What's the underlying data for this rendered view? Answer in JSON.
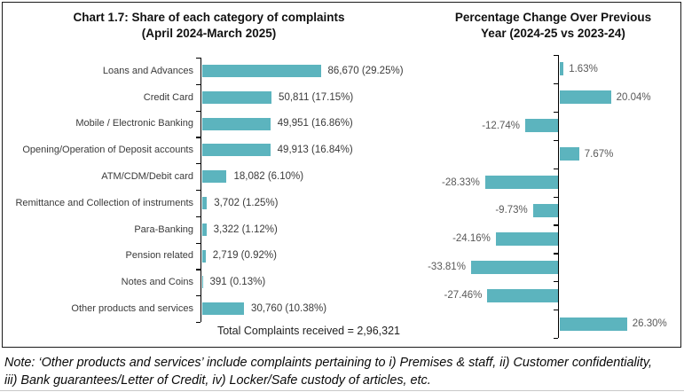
{
  "panels": {
    "left": {
      "title_line1": "Chart 1.7: Share of each category of complaints",
      "title_line2": "(April 2024-March 2025)",
      "total_label": "Total Complaints received = 2,96,321"
    },
    "right": {
      "title_line1": "Percentage Change Over Previous",
      "title_line2": "Year (2024-25 vs 2023-24)"
    }
  },
  "note": {
    "lines": [
      "Note: ‘Other products and services’ include complaints pertaining to i) Premises & staff, ii) Customer confidentiality,",
      "iii) Bank guarantees/Letter of Credit, iv) Locker/Safe custody of articles, etc."
    ]
  },
  "colors": {
    "bar": "#5cb4be",
    "axis": "#000000",
    "label": "#3a3a3a",
    "pct_label": "#595959"
  },
  "chart_data": [
    {
      "type": "bar",
      "orientation": "horizontal",
      "title": "Chart 1.7: Share of each category of complaints (April 2024-March 2025)",
      "categories": [
        "Loans and Advances",
        "Credit Card",
        "Mobile / Electronic Banking",
        "Opening/Operation of Deposit accounts",
        "ATM/CDM/Debit card",
        "Remittance and Collection of instruments",
        "Para-Banking",
        "Pension related",
        "Notes and Coins",
        "Other products and services"
      ],
      "values": [
        86670,
        50811,
        49951,
        49913,
        18082,
        3702,
        3322,
        2719,
        391,
        30760
      ],
      "labels": [
        "86,670 (29.25%)",
        "50,811 (17.15%)",
        "49,951 (16.86%)",
        "49,913 (16.84%)",
        "18,082 (6.10%)",
        "3,702 (1.25%)",
        "3,322 (1.12%)",
        "2,719 (0.92%)",
        "391 (0.13%)",
        "30,760 (10.38%)"
      ],
      "total_note": "Total Complaints received = 2,96,321",
      "xlim": [
        0,
        95000
      ],
      "grid": false,
      "legend": false
    },
    {
      "type": "bar",
      "orientation": "horizontal",
      "title": "Percentage Change Over Previous Year (2024-25 vs 2023-24)",
      "categories": [
        "Loans and Advances",
        "Credit Card",
        "Mobile / Electronic Banking",
        "Opening/Operation of Deposit accounts",
        "ATM/CDM/Debit card",
        "Remittance and Collection of instruments",
        "Para-Banking",
        "Pension related",
        "Notes and Coins",
        "Other products and services"
      ],
      "values": [
        1.63,
        20.04,
        -12.74,
        7.67,
        -28.33,
        -9.73,
        -24.16,
        -33.81,
        -27.46,
        26.3
      ],
      "labels": [
        "1.63%",
        "20.04%",
        "-12.74%",
        "7.67%",
        "-28.33%",
        "-9.73%",
        "-24.16%",
        "-33.81%",
        "-27.46%",
        "26.30%"
      ],
      "xlim": [
        -40,
        40
      ],
      "grid": false,
      "legend": false
    }
  ]
}
